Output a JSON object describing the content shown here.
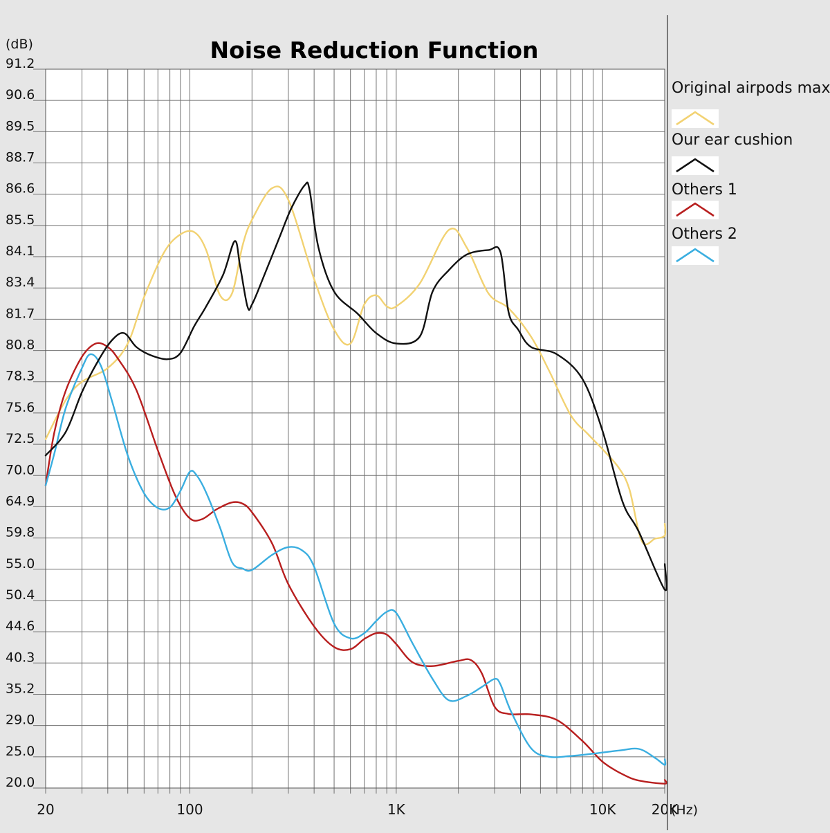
{
  "chart_data": {
    "type": "line",
    "title": "Noise Reduction Function",
    "ylabel": "(dB)",
    "xlabel": "(Hz)",
    "x_scale": "log",
    "xlim": [
      20,
      20000
    ],
    "ylim": [
      20.0,
      91.2
    ],
    "y_tick_labels": [
      "91.2",
      "90.6",
      "89.5",
      "88.7",
      "86.6",
      "85.5",
      "84.1",
      "83.4",
      "81.7",
      "80.8",
      "78.3",
      "75.6",
      "72.5",
      "70.0",
      "64.9",
      "59.8",
      "55.0",
      "50.4",
      "44.6",
      "40.3",
      "35.2",
      "29.0",
      "25.0",
      "20.0"
    ],
    "x_ticks": [
      {
        "value": 20,
        "label": "20"
      },
      {
        "value": 100,
        "label": "100"
      },
      {
        "value": 1000,
        "label": "1K"
      },
      {
        "value": 10000,
        "label": "10K"
      },
      {
        "value": 20000,
        "label": "20K"
      }
    ],
    "grid": true,
    "legend_position": "right",
    "series": [
      {
        "name": "Original airpods max",
        "color": "#f2d272",
        "x": [
          20,
          25,
          30,
          40,
          50,
          60,
          75,
          90,
          105,
          120,
          140,
          160,
          180,
          200,
          250,
          300,
          400,
          500,
          600,
          700,
          800,
          900,
          1000,
          1300,
          1800,
          2200,
          2800,
          3500,
          4500,
          5500,
          7000,
          8500,
          10000,
          12000,
          13500,
          15500,
          18000,
          20000
        ],
        "y": [
          73.0,
          76.7,
          78.3,
          79.4,
          81.0,
          82.9,
          84.3,
          85.1,
          85.2,
          84.4,
          83.0,
          83.1,
          84.6,
          85.7,
          87.0,
          86.4,
          83.6,
          81.4,
          81.0,
          82.5,
          83.0,
          82.4,
          82.4,
          83.5,
          85.3,
          84.5,
          83.1,
          82.3,
          81.2,
          79.2,
          75.4,
          73.5,
          72.1,
          70.6,
          67.7,
          59.3,
          59.7,
          60.2
        ],
        "end_y": 62.1
      },
      {
        "name": "Our ear cushion",
        "color": "#111111",
        "x": [
          20,
          25,
          30,
          36,
          42,
          48,
          55,
          65,
          78,
          90,
          105,
          120,
          145,
          165,
          175,
          190,
          200,
          230,
          270,
          310,
          360,
          380,
          420,
          500,
          650,
          800,
          1000,
          1300,
          1500,
          1800,
          2200,
          2800,
          3200,
          3500,
          3900,
          4500,
          6000,
          8000,
          10000,
          12500,
          15000,
          20000
        ],
        "y": [
          71.6,
          73.7,
          77.4,
          80.0,
          81.1,
          81.3,
          80.9,
          80.4,
          80.1,
          80.6,
          81.5,
          82.4,
          83.7,
          84.8,
          83.9,
          82.4,
          82.5,
          83.7,
          84.9,
          86.1,
          87.2,
          86.9,
          84.5,
          83.2,
          82.0,
          81.3,
          81.0,
          81.2,
          83.2,
          83.8,
          84.2,
          84.4,
          84.3,
          82.1,
          81.4,
          80.9,
          80.5,
          78.5,
          73.8,
          65.7,
          60.8,
          52.0
        ],
        "end_y": 55.8
      },
      {
        "name": "Others 1",
        "color": "#b81f1f",
        "x": [
          20,
          22,
          25,
          30,
          35,
          40,
          45,
          55,
          70,
          85,
          100,
          115,
          135,
          160,
          180,
          200,
          250,
          300,
          400,
          500,
          600,
          700,
          800,
          900,
          1000,
          1200,
          1500,
          2000,
          2300,
          2600,
          3000,
          3500,
          4500,
          6000,
          8000,
          10000,
          12500,
          15000,
          20000
        ],
        "y": [
          68.4,
          73.6,
          77.5,
          80.3,
          81.0,
          80.9,
          80.1,
          77.6,
          72.0,
          66.7,
          63.0,
          62.9,
          64.5,
          65.6,
          65.4,
          64.0,
          59.0,
          52.8,
          45.6,
          42.5,
          42.2,
          43.6,
          44.4,
          44.2,
          42.9,
          40.4,
          39.8,
          40.6,
          40.7,
          38.6,
          32.7,
          31.3,
          31.2,
          30.1,
          27.0,
          24.2,
          22.2,
          21.2,
          20.7
        ],
        "end_y": 21.3
      },
      {
        "name": "Others 2",
        "color": "#3aaee0",
        "x": [
          20,
          22,
          25,
          30,
          33,
          37,
          42,
          50,
          60,
          70,
          80,
          90,
          100,
          108,
          120,
          140,
          160,
          180,
          200,
          250,
          300,
          350,
          400,
          500,
          600,
          700,
          800,
          900,
          1000,
          1200,
          1500,
          1800,
          2200,
          2600,
          3000,
          3200,
          3600,
          4500,
          5500,
          7000,
          9000,
          12000,
          15000,
          18000,
          20000
        ],
        "y": [
          68.4,
          71.7,
          76.0,
          79.4,
          80.5,
          79.6,
          76.6,
          71.6,
          67.1,
          64.7,
          64.8,
          67.5,
          70.3,
          70.0,
          67.2,
          61.5,
          56.1,
          55.1,
          54.9,
          57.2,
          58.4,
          57.9,
          55.4,
          46.1,
          43.7,
          44.4,
          46.6,
          48.3,
          48.1,
          43.0,
          37.7,
          34.0,
          34.9,
          36.4,
          37.7,
          36.8,
          31.8,
          26.1,
          25.0,
          25.1,
          25.4,
          25.8,
          26.0,
          24.8,
          23.7
        ],
        "end_y": 24.6
      }
    ]
  }
}
